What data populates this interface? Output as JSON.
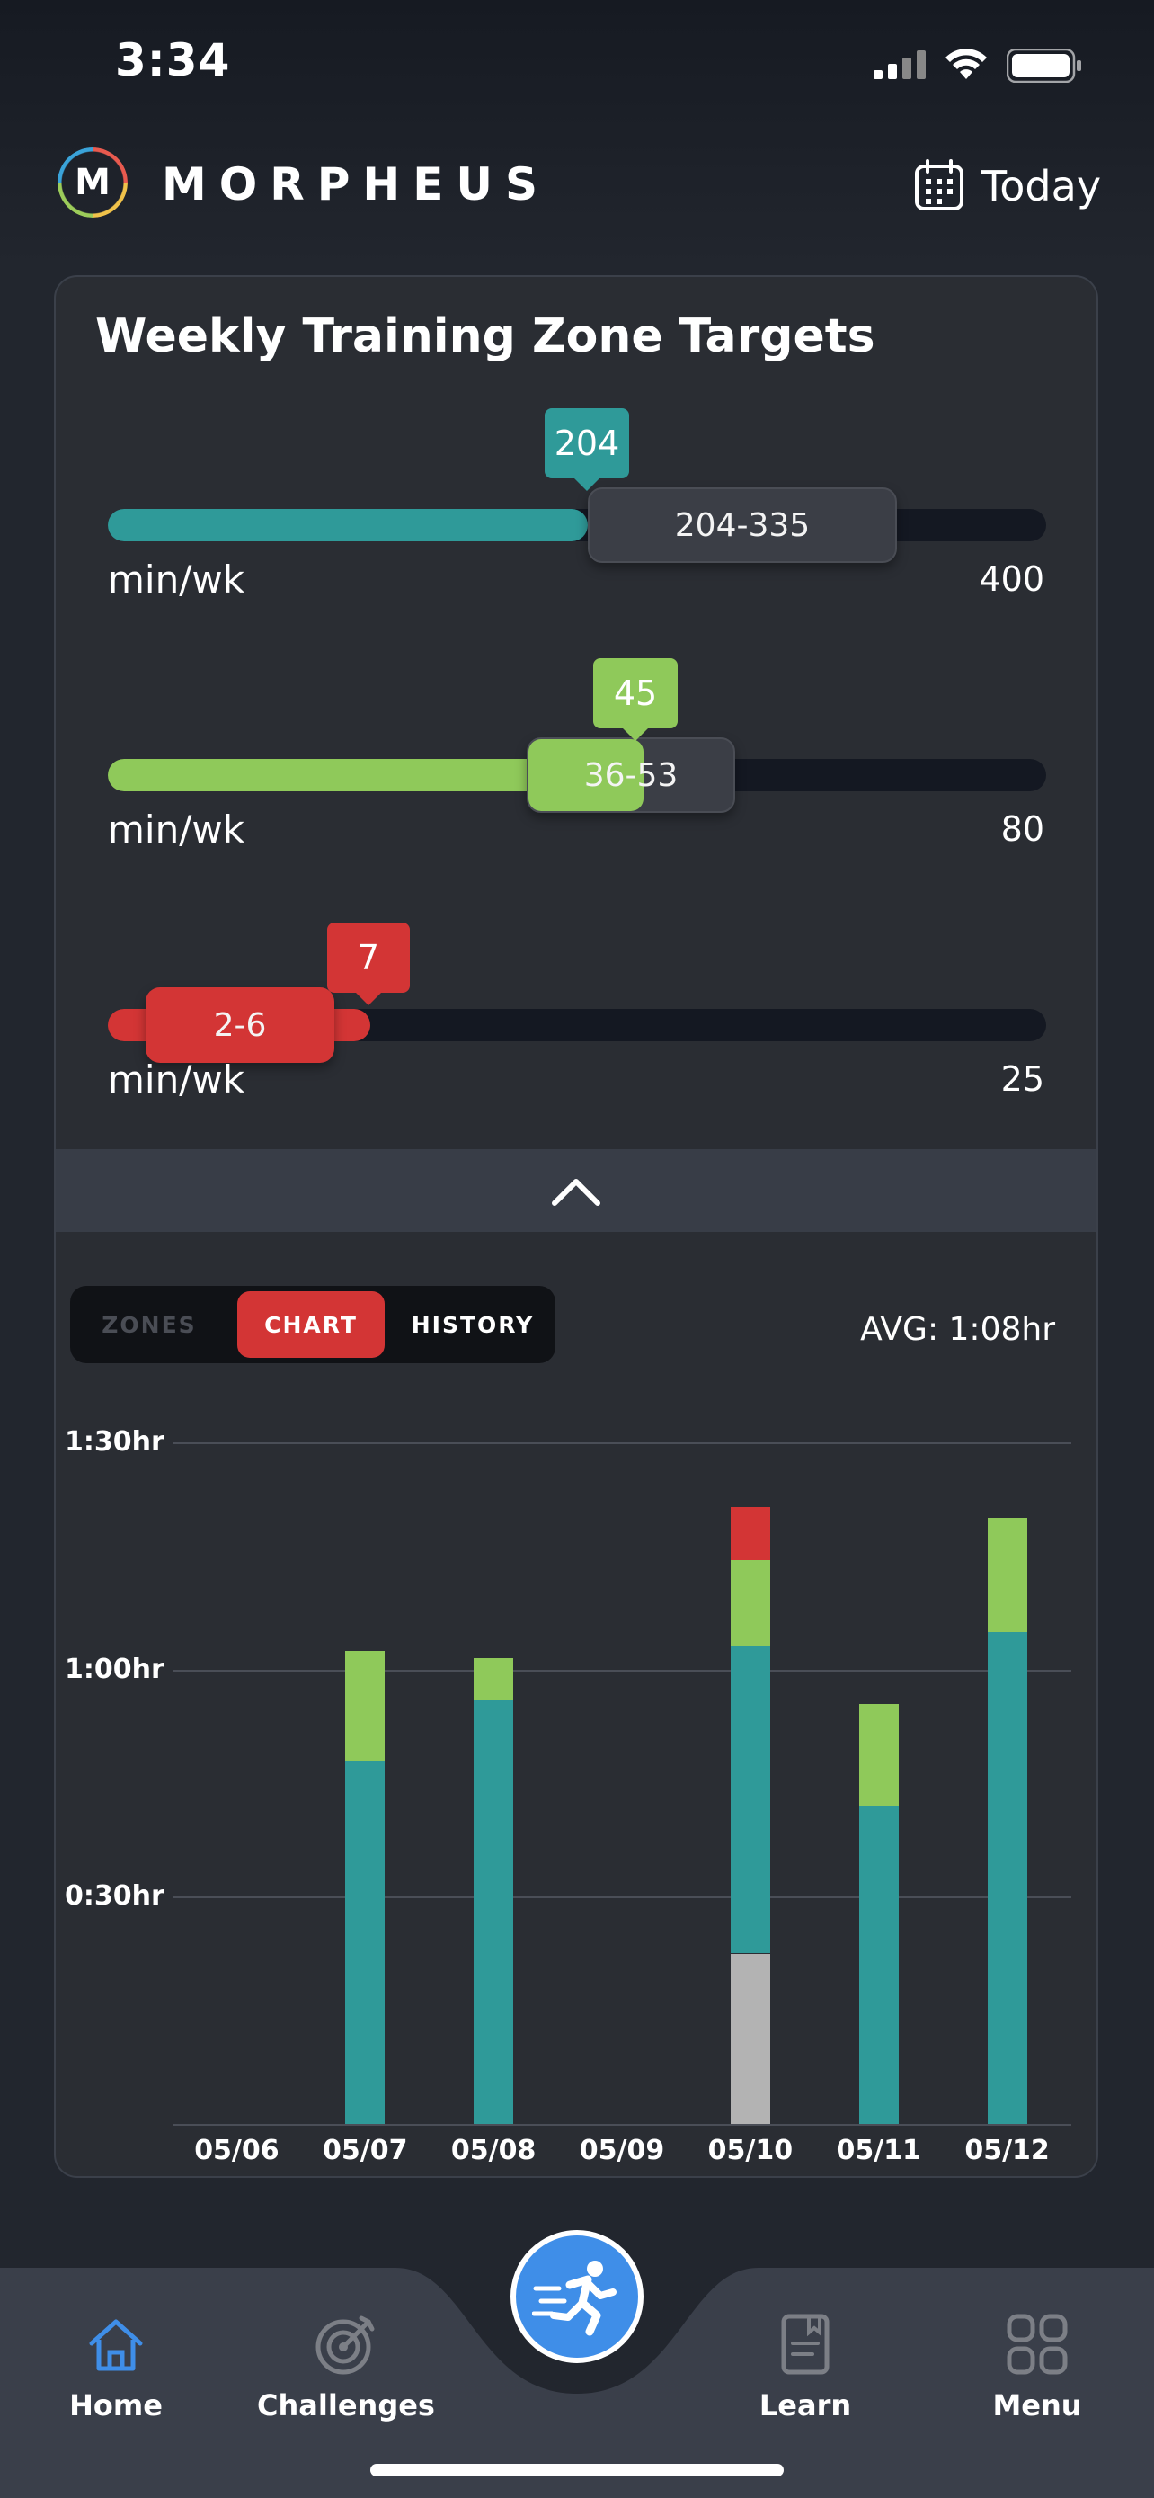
{
  "status": {
    "time": "3:34"
  },
  "header": {
    "brand": "MORPHEUS",
    "logo_letter": "M",
    "date_label": "Today"
  },
  "card": {
    "title": "Weekly Training Zone Targets",
    "sliders": [
      {
        "value_label": "204",
        "value": 204,
        "range_label": "204-335",
        "range": [
          204,
          335
        ],
        "unit": "min/wk",
        "max_label": "400",
        "max": 400,
        "color": "#2f9a99"
      },
      {
        "value_label": "45",
        "value": 45,
        "range_label": "36-53",
        "range": [
          36,
          53
        ],
        "unit": "min/wk",
        "max_label": "80",
        "max": 80,
        "color": "#8fc95a"
      },
      {
        "value_label": "7",
        "value": 7,
        "range_label": "2-6",
        "range": [
          2,
          6
        ],
        "unit": "min/wk",
        "max_label": "25",
        "max": 25,
        "color": "#d33535"
      }
    ]
  },
  "chart_panel": {
    "tabs": [
      {
        "label": "ZONES",
        "active": false
      },
      {
        "label": "CHART",
        "active": true
      },
      {
        "label": "HISTORY",
        "active": false
      }
    ],
    "avg_label": "AVG: 1:08hr"
  },
  "chart_data": {
    "type": "bar",
    "stacked": true,
    "categories": [
      "05/06",
      "05/07",
      "05/08",
      "05/09",
      "05/10",
      "05/11",
      "05/12"
    ],
    "y_ticks": [
      "0:30hr",
      "1:00hr",
      "1:30hr"
    ],
    "y_tick_values": [
      30,
      60,
      90
    ],
    "ylim": [
      0,
      90
    ],
    "grid": true,
    "series": [
      {
        "color": "#b3b3b3",
        "values": [
          0,
          0,
          0,
          0,
          22.5,
          0,
          0
        ]
      },
      {
        "color": "#2f9a99",
        "values": [
          0,
          48,
          56,
          0,
          40.5,
          42,
          65
        ]
      },
      {
        "color": "#8fc95a",
        "values": [
          0,
          14.5,
          5.5,
          0,
          11.5,
          13.5,
          15
        ]
      },
      {
        "color": "#d33535",
        "values": [
          0,
          0,
          0,
          0,
          7,
          0,
          0
        ]
      }
    ]
  },
  "nav": {
    "items": [
      {
        "label": "Home",
        "icon": "home-icon",
        "active": true
      },
      {
        "label": "Challenges",
        "icon": "target-icon",
        "active": false
      },
      {
        "label": "Learn",
        "icon": "book-icon",
        "active": false
      },
      {
        "label": "Menu",
        "icon": "grid-icon",
        "active": false
      }
    ],
    "center_icon": "running-person-icon"
  }
}
